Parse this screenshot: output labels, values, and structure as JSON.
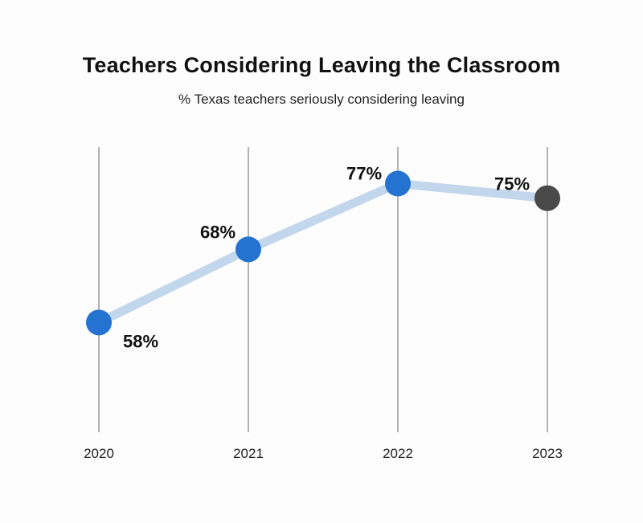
{
  "chart_data": {
    "type": "line",
    "title": "Teachers Considering Leaving the Classroom",
    "subtitle": "% Texas teachers seriously considering leaving",
    "categories": [
      "2020",
      "2021",
      "2022",
      "2023"
    ],
    "values": [
      58,
      68,
      77,
      75
    ],
    "data_labels": [
      "58%",
      "68%",
      "77%",
      "75%"
    ],
    "ylim": [
      43,
      82
    ],
    "grid": "vertical",
    "colors": {
      "line": "#c3d7ec",
      "point": "#2473d1",
      "point_last": "#4a4a4a",
      "gridline": "#9a9a9a"
    }
  }
}
